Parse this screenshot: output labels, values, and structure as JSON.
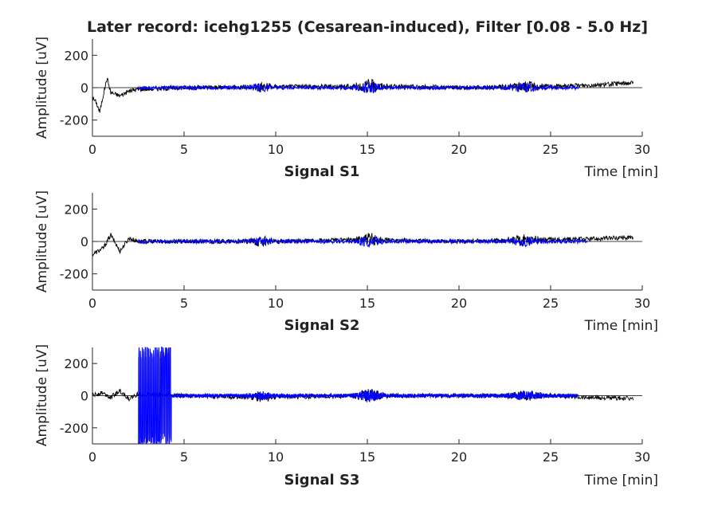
{
  "title": "Later record: icehg1255 (Cesarean-induced), Filter [0.08 - 5.0 Hz]",
  "colors": {
    "raw": "#000000",
    "filtered": "#0000ff",
    "axis": "#262626"
  },
  "chart_data": [
    {
      "type": "line",
      "subtitle": "Signal S1",
      "xlabel": "Time [min]",
      "ylabel": "Amplitude [uV]",
      "xlim": [
        0,
        30
      ],
      "ylim": [
        -300,
        300
      ],
      "xticks": [
        0,
        5,
        10,
        15,
        20,
        25,
        30
      ],
      "yticks": [
        -200,
        0,
        200
      ],
      "series": [
        {
          "role": "raw",
          "x": [
            0,
            0.2,
            0.4,
            0.6,
            0.8,
            1.0,
            1.5,
            2.0,
            2.5,
            5,
            9,
            15,
            20,
            23,
            26,
            28,
            29.5
          ],
          "y": [
            -60,
            -90,
            -150,
            -40,
            60,
            -30,
            -50,
            -20,
            -10,
            0,
            5,
            10,
            0,
            5,
            10,
            20,
            30
          ]
        },
        {
          "role": "filtered",
          "x": [
            2.5,
            5,
            9,
            15,
            20,
            23,
            26.5
          ],
          "y": [
            0,
            0,
            0,
            0,
            0,
            0,
            0
          ]
        }
      ]
    },
    {
      "type": "line",
      "subtitle": "Signal S2",
      "xlabel": "Time [min]",
      "ylabel": "Amplitude [uV]",
      "xlim": [
        0,
        30
      ],
      "ylim": [
        -300,
        300
      ],
      "xticks": [
        0,
        5,
        10,
        15,
        20,
        25,
        30
      ],
      "yticks": [
        -200,
        0,
        200
      ],
      "series": [
        {
          "role": "raw",
          "x": [
            0,
            0.3,
            0.6,
            1.0,
            1.5,
            2.0,
            2.5,
            5,
            9,
            15,
            20,
            24,
            27,
            29.5
          ],
          "y": [
            -80,
            -60,
            -40,
            40,
            -60,
            20,
            0,
            0,
            0,
            10,
            0,
            10,
            15,
            25
          ]
        },
        {
          "role": "filtered",
          "x": [
            2.5,
            5,
            9,
            15,
            20,
            24,
            27
          ],
          "y": [
            0,
            0,
            0,
            0,
            0,
            0,
            0
          ]
        }
      ]
    },
    {
      "type": "line",
      "subtitle": "Signal S3",
      "xlabel": "Time [min]",
      "ylabel": "Amplitude [uV]",
      "xlim": [
        0,
        30
      ],
      "ylim": [
        -300,
        300
      ],
      "xticks": [
        0,
        5,
        10,
        15,
        20,
        25,
        30
      ],
      "yticks": [
        -200,
        0,
        200
      ],
      "series": [
        {
          "role": "raw",
          "x": [
            0,
            0.5,
            1.0,
            1.5,
            2.0,
            2.5,
            5,
            9,
            15,
            20,
            25,
            27,
            29.5
          ],
          "y": [
            0,
            20,
            -10,
            30,
            -20,
            10,
            0,
            -10,
            0,
            0,
            0,
            -10,
            -20
          ]
        },
        {
          "role": "filtered",
          "x": [
            2.5,
            2.8,
            3.1,
            3.4,
            3.7,
            4.0,
            4.3,
            5,
            9,
            15,
            20,
            26.5
          ],
          "y": [
            300,
            -300,
            300,
            -300,
            300,
            -300,
            0,
            0,
            0,
            0,
            0,
            0
          ]
        }
      ]
    }
  ]
}
